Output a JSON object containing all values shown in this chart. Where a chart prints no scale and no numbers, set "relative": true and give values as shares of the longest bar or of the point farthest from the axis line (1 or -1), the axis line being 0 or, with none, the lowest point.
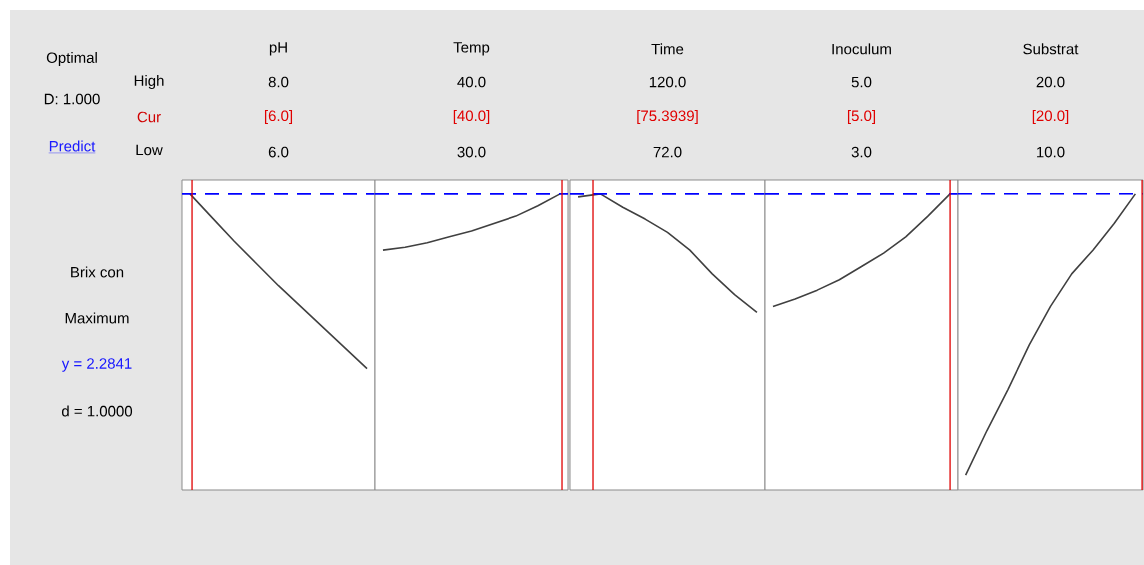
{
  "chart_data": [
    {
      "type": "other",
      "annotations": [
        "Optimal",
        "D: 1.000",
        "Predict",
        "High",
        "Cur",
        "Low",
        "Brix con",
        "Maximum",
        "y = 2.2841",
        "d = 1.0000"
      ]
    },
    {
      "type": "line",
      "title": "pH",
      "relative": true,
      "annotations": [
        "8.0",
        "[6.0]",
        "6.0"
      ],
      "categories": [
        null,
        null,
        null,
        null,
        null,
        null,
        null,
        null,
        null
      ],
      "series": [
        {
          "color": "#404040",
          "values": [
            1.0,
            0.92,
            0.84,
            0.765,
            0.69,
            0.62,
            0.55,
            0.48,
            0.41
          ]
        }
      ],
      "ref_lines": [
        {
          "axis": "y",
          "value": 1,
          "color": "#0000ff",
          "line_style": "dashed"
        }
      ]
    },
    {
      "type": "line",
      "title": "Temp",
      "relative": true,
      "annotations": [
        "40.0",
        "[40.0]",
        "30.0"
      ],
      "categories": [
        null,
        null,
        null,
        null,
        null,
        null,
        null,
        null,
        null
      ],
      "series": [
        {
          "color": "#404040",
          "values": [
            0.81,
            0.82,
            0.835,
            0.855,
            0.875,
            0.9,
            0.925,
            0.96,
            1.0
          ]
        }
      ],
      "ref_lines": [
        {
          "axis": "y",
          "value": 1,
          "color": "#0000ff",
          "line_style": "dashed"
        }
      ]
    },
    {
      "type": "line",
      "title": "Time",
      "relative": true,
      "annotations": [
        "120.0",
        "[75.3939]",
        "72.0"
      ],
      "categories": [
        null,
        null,
        null,
        null,
        null,
        null,
        null,
        null,
        null
      ],
      "series": [
        {
          "color": "#404040",
          "values": [
            0.99,
            1.0,
            0.955,
            0.915,
            0.87,
            0.81,
            0.73,
            0.66,
            0.6
          ]
        }
      ],
      "ref_lines": [
        {
          "axis": "y",
          "value": 1,
          "color": "#0000ff",
          "line_style": "dashed"
        }
      ]
    },
    {
      "type": "line",
      "title": "Inoculum",
      "relative": true,
      "annotations": [
        "5.0",
        "[5.0]",
        "3.0"
      ],
      "categories": [
        null,
        null,
        null,
        null,
        null,
        null,
        null,
        null,
        null
      ],
      "series": [
        {
          "color": "#404040",
          "values": [
            0.62,
            0.645,
            0.675,
            0.71,
            0.755,
            0.8,
            0.855,
            0.925,
            1.0
          ]
        }
      ],
      "ref_lines": [
        {
          "axis": "y",
          "value": 1,
          "color": "#0000ff",
          "line_style": "dashed"
        }
      ]
    },
    {
      "type": "line",
      "title": "Substrat",
      "relative": true,
      "annotations": [
        "20.0",
        "[20.0]",
        "10.0"
      ],
      "categories": [
        null,
        null,
        null,
        null,
        null,
        null,
        null,
        null,
        null
      ],
      "series": [
        {
          "color": "#404040",
          "values": [
            0.05,
            0.2,
            0.34,
            0.49,
            0.62,
            0.73,
            0.81,
            0.9,
            1.0
          ]
        }
      ],
      "ref_lines": [
        {
          "axis": "y",
          "value": 1,
          "color": "#0000ff",
          "line_style": "dashed"
        }
      ]
    }
  ]
}
